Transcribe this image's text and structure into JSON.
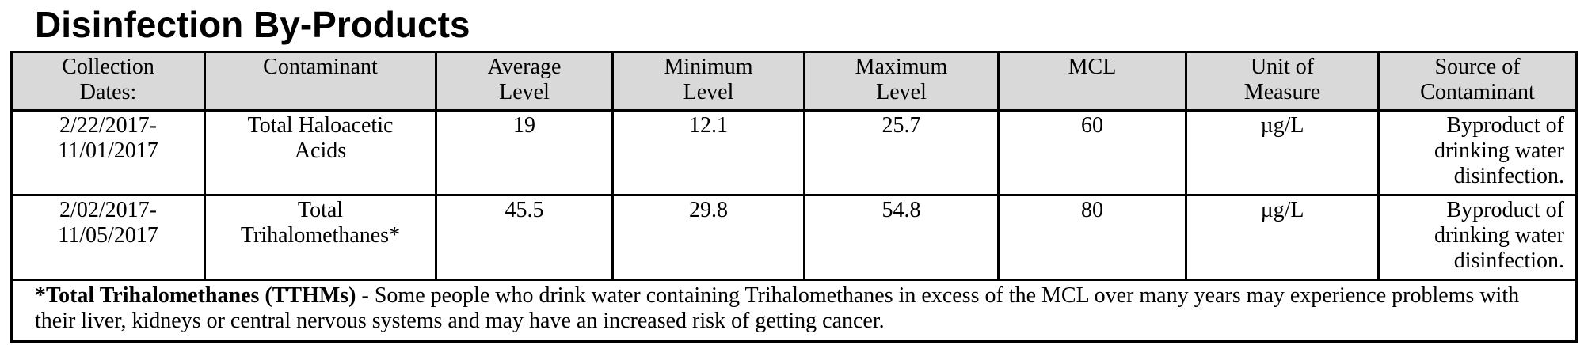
{
  "title": "Disinfection By-Products",
  "table": {
    "headers": {
      "collection_dates": [
        "Collection",
        "Dates:"
      ],
      "contaminant": [
        "Contaminant"
      ],
      "average_level": [
        "Average",
        "Level"
      ],
      "minimum_level": [
        "Minimum",
        "Level"
      ],
      "maximum_level": [
        "Maximum",
        "Level"
      ],
      "mcl": [
        "MCL"
      ],
      "unit_of_measure": [
        "Unit of",
        "Measure"
      ],
      "source_of_contaminant": [
        "Source of",
        "Contaminant"
      ]
    },
    "rows": [
      {
        "collection_dates": [
          "2/22/2017-",
          "11/01/2017"
        ],
        "contaminant": [
          "Total Haloacetic",
          "Acids"
        ],
        "average_level": "19",
        "minimum_level": "12.1",
        "maximum_level": "25.7",
        "mcl": "60",
        "unit_of_measure": "µg/L",
        "source_of_contaminant": [
          "Byproduct of",
          "drinking water",
          "disinfection."
        ]
      },
      {
        "collection_dates": [
          "2/02/2017-",
          "11/05/2017"
        ],
        "contaminant": [
          "Total",
          "Trihalomethanes*"
        ],
        "average_level": "45.5",
        "minimum_level": "29.8",
        "maximum_level": "54.8",
        "mcl": "80",
        "unit_of_measure": "µg/L",
        "source_of_contaminant": [
          "Byproduct of",
          "drinking water",
          "disinfection."
        ]
      }
    ],
    "footnote": {
      "bold_lead": "*Total Trihalomethanes (TTHMs)",
      "text": " - Some people who drink water containing Trihalomethanes in excess of the MCL over many years may experience problems with their liver, kidneys or central nervous systems and may have an increased risk of getting cancer."
    }
  }
}
